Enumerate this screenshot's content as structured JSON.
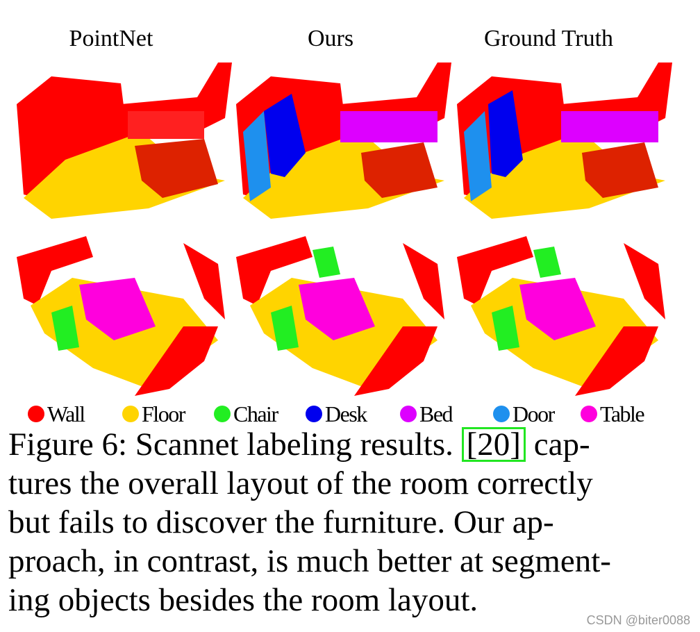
{
  "columns": [
    "PointNet",
    "Ours",
    "Ground Truth"
  ],
  "legend": [
    {
      "label": "Wall",
      "color": "#ff0000"
    },
    {
      "label": "Floor",
      "color": "#ffd400"
    },
    {
      "label": "Chair",
      "color": "#22ee22"
    },
    {
      "label": "Desk",
      "color": "#0000ee"
    },
    {
      "label": "Bed",
      "color": "#dd00ff"
    },
    {
      "label": "Door",
      "color": "#1e90ee"
    },
    {
      "label": "Table",
      "color": "#ff00dd"
    }
  ],
  "caption": {
    "line1_before": "Figure 6: Scannet labeling results. ",
    "citation": "[20]",
    "line1_after": " cap-",
    "line2": "tures the overall layout of the room correctly",
    "line3": "but fails to discover the furniture.  Our ap-",
    "line4": "proach, in contrast, is much better at segment-",
    "line5": "ing objects besides the room layout."
  },
  "watermark": "CSDN @biter0088"
}
